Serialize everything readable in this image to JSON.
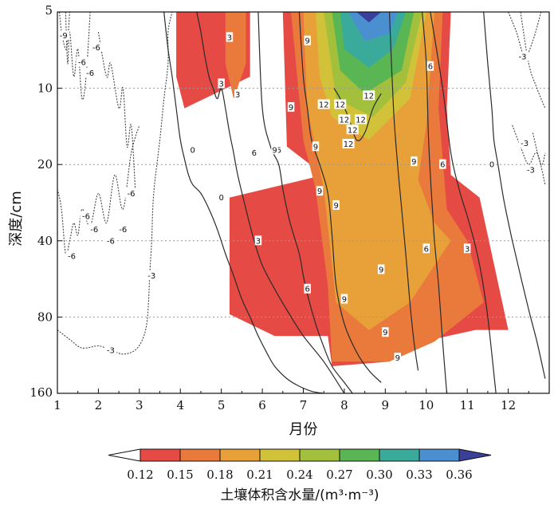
{
  "chart_data": {
    "type": "heatmap",
    "title": "",
    "xlabel": "月份",
    "ylabel": "深度/cm",
    "xlim": [
      1,
      13
    ],
    "ylim": [
      5,
      160
    ],
    "y_scale": "log",
    "x_ticks": [
      1,
      2,
      3,
      4,
      5,
      6,
      7,
      8,
      9,
      10,
      11,
      12
    ],
    "y_ticks": [
      5,
      10,
      20,
      40,
      80,
      160
    ],
    "grid": "dotted horizontal at 10, 20, 40, 80 cm",
    "colorbar": {
      "title": "土壤体积含水量/(m³·m⁻³)",
      "labels": [
        "0.12",
        "0.15",
        "0.18",
        "0.21",
        "0.24",
        "0.27",
        "0.30",
        "0.33",
        "0.36"
      ],
      "colors": [
        "#ffffff",
        "#e64a45",
        "#ea7a3c",
        "#e8a138",
        "#d2c23a",
        "#a2c03c",
        "#5ab553",
        "#3aab9a",
        "#4a8fcf",
        "#3a3f9a"
      ],
      "extend": "both",
      "placement": "bottom"
    },
    "fill_regions": [
      {
        "level": 0.12,
        "x": [
          3.9,
          5.7,
          5.7,
          4.1,
          3.9
        ],
        "y": [
          5,
          5,
          9,
          12,
          9
        ]
      },
      {
        "level": 0.12,
        "x": [
          6.5,
          10.6,
          10.5,
          10.6,
          11.3,
          12.0,
          11.2,
          9.9,
          9.1,
          7.7,
          7.6,
          6.5,
          6.3,
          5.2,
          5.2,
          7.5,
          6.6,
          6.5
        ],
        "y": [
          5,
          5,
          12,
          22,
          27,
          90,
          90,
          100,
          120,
          125,
          95,
          95,
          95,
          78,
          27,
          22,
          17,
          5
        ]
      },
      {
        "level": 0.15,
        "x": [
          5.1,
          5.6,
          5.6,
          5.3,
          5.1
        ],
        "y": [
          5,
          5,
          8,
          11,
          8
        ]
      },
      {
        "level": 0.15,
        "x": [
          6.7,
          10.4,
          10.3,
          10.5,
          11.0,
          11.4,
          10.2,
          9.1,
          7.7,
          7.6,
          7.3,
          7.0,
          6.7
        ],
        "y": [
          5,
          5,
          12,
          30,
          40,
          70,
          100,
          120,
          120,
          60,
          25,
          16,
          5
        ]
      },
      {
        "level": 0.18,
        "x": [
          7.0,
          10.2,
          10.0,
          9.8,
          10.2,
          10.6,
          9.6,
          8.6,
          7.8,
          7.5,
          7.1,
          7.0
        ],
        "y": [
          5,
          5,
          14,
          23,
          34,
          40,
          70,
          90,
          70,
          25,
          12,
          5
        ]
      },
      {
        "level": 0.21,
        "x": [
          7.3,
          10.0,
          9.6,
          8.6,
          7.7,
          7.4,
          7.3
        ],
        "y": [
          5,
          5,
          11,
          16,
          13,
          9,
          5
        ]
      },
      {
        "level": 0.24,
        "x": [
          7.5,
          9.9,
          9.5,
          8.7,
          7.8,
          7.5
        ],
        "y": [
          5,
          5,
          9.5,
          13,
          11,
          5
        ]
      },
      {
        "level": 0.27,
        "x": [
          7.7,
          9.7,
          9.4,
          8.5,
          7.9,
          7.7
        ],
        "y": [
          5,
          5,
          8.5,
          10.5,
          8.5,
          5
        ]
      },
      {
        "level": 0.3,
        "x": [
          7.9,
          9.5,
          9.2,
          8.6,
          8.0,
          7.9
        ],
        "y": [
          5,
          5,
          7,
          8.3,
          7,
          5
        ]
      },
      {
        "level": 0.33,
        "x": [
          8.1,
          9.3,
          9.1,
          8.5,
          8.1
        ],
        "y": [
          5,
          5,
          6.1,
          6.5,
          5
        ]
      },
      {
        "level": 0.36,
        "x": [
          8.3,
          8.9,
          8.6,
          8.3
        ],
        "y": [
          5,
          5,
          5.5,
          5
        ]
      }
    ],
    "contours": [
      {
        "label": "-9",
        "style": "dashed",
        "x": [
          1.05,
          1.1,
          1.2,
          1.25,
          1.3
        ],
        "y": [
          5,
          6,
          7,
          6.5,
          5
        ]
      },
      {
        "label": "-6",
        "style": "dashed",
        "x": [
          1.2,
          1.25,
          1.3,
          1.4,
          1.5,
          1.6,
          1.7,
          1.8
        ],
        "y": [
          5,
          8,
          6,
          9,
          7,
          11,
          9,
          5
        ]
      },
      {
        "label": "-6",
        "style": "dashed",
        "x": [
          1.0,
          1.1,
          1.2,
          1.3,
          1.4,
          1.5,
          1.6,
          1.8,
          2.0,
          2.2,
          2.4,
          2.6,
          2.8,
          3.0
        ],
        "y": [
          25,
          30,
          45,
          40,
          34,
          38,
          30,
          35,
          26,
          34,
          22,
          30,
          18,
          14
        ]
      },
      {
        "label": "-6",
        "style": "dashed",
        "x": [
          2.0,
          2.2,
          2.3,
          2.5,
          2.6,
          2.7,
          2.8,
          2.9
        ],
        "y": [
          6,
          9,
          8,
          12,
          10,
          17,
          14,
          25
        ]
      },
      {
        "label": "-6",
        "style": "dashed",
        "x": [
          12.3,
          12.5,
          12.7,
          12.9
        ],
        "y": [
          5,
          8,
          10,
          12
        ]
      },
      {
        "label": "-6",
        "style": "dashed",
        "x": [
          12.6,
          12.8,
          12.9
        ],
        "y": [
          15,
          20,
          18
        ]
      },
      {
        "label": "-3",
        "style": "dashed",
        "x": [
          12.0,
          12.2,
          12.4,
          12.6,
          12.8
        ],
        "y": [
          5,
          6,
          7.5,
          6.5,
          5
        ]
      },
      {
        "label": "-3",
        "style": "dashed",
        "x": [
          12.1,
          12.3,
          12.5,
          12.7,
          12.9
        ],
        "y": [
          14,
          17,
          20,
          18,
          24
        ]
      },
      {
        "label": "-3",
        "style": "dashed",
        "x": [
          1.0,
          1.3,
          1.6,
          2.0,
          2.3,
          2.6,
          2.9,
          3.1,
          3.2,
          3.25
        ],
        "y": [
          90,
          98,
          106,
          104,
          108,
          112,
          108,
          96,
          80,
          55
        ]
      },
      {
        "label": "-3",
        "style": "dashed",
        "x": [
          3.25,
          3.3,
          3.35,
          3.5,
          3.6,
          3.7,
          3.7,
          3.8
        ],
        "y": [
          55,
          40,
          26,
          16,
          11,
          8,
          6,
          5
        ]
      },
      {
        "label": "0",
        "style": "solid",
        "x": [
          3.6,
          3.7,
          3.8,
          3.9,
          4.0,
          4.1,
          4.2,
          4.3,
          4.5,
          4.7,
          4.9,
          5.1,
          5.3,
          5.5,
          5.7,
          5.9,
          6.1,
          6.3,
          6.6,
          6.9,
          7.2,
          7.5
        ],
        "y": [
          5,
          7,
          9,
          12,
          16,
          19,
          22,
          24,
          26,
          30,
          36,
          45,
          55,
          68,
          80,
          95,
          110,
          125,
          140,
          150,
          157,
          160
        ]
      },
      {
        "label": "0",
        "style": "solid",
        "x": [
          11.4,
          11.5,
          11.6,
          11.65,
          11.75,
          11.9,
          12.1,
          12.3,
          12.5,
          12.7,
          12.9
        ],
        "y": [
          5,
          8,
          12,
          16,
          20,
          28,
          40,
          55,
          75,
          100,
          140
        ]
      },
      {
        "label": "3",
        "style": "solid",
        "x": [
          4.4,
          4.5,
          4.6,
          4.7,
          4.8,
          4.9,
          5.0,
          5.1,
          5.2,
          5.3,
          5.4,
          5.6,
          5.8,
          6.0,
          6.3,
          6.6,
          7.0,
          7.5,
          8.0
        ],
        "y": [
          5,
          6,
          7.5,
          9,
          10,
          11,
          10,
          12,
          15,
          18,
          22,
          30,
          40,
          50,
          62,
          75,
          95,
          120,
          160
        ]
      },
      {
        "label": "3",
        "style": "solid",
        "x": [
          10.1,
          10.4,
          10.6,
          10.8,
          11.0,
          11.2,
          11.35,
          11.5,
          11.7
        ],
        "y": [
          5,
          10,
          18,
          25,
          32,
          42,
          55,
          80,
          160
        ]
      },
      {
        "label": "6",
        "style": "solid",
        "x": [
          5.9,
          6.0,
          6.2,
          6.4,
          6.5,
          6.6,
          6.7,
          6.9,
          7.0,
          7.1,
          7.3,
          7.5,
          7.7,
          8.0,
          8.2
        ],
        "y": [
          5,
          12,
          17,
          20,
          25,
          30,
          35,
          45,
          55,
          65,
          85,
          105,
          125,
          145,
          160
        ]
      },
      {
        "label": "6",
        "style": "solid",
        "x": [
          9.9,
          10.0,
          10.05,
          10.1,
          10.15,
          10.2,
          10.3,
          10.4,
          10.5
        ],
        "y": [
          5,
          8,
          15,
          22,
          30,
          40,
          60,
          100,
          160
        ]
      },
      {
        "label": "9",
        "style": "solid",
        "x": [
          6.9,
          7.0,
          7.1,
          7.2,
          7.4,
          7.6,
          7.7,
          7.8,
          8.0,
          8.3,
          8.6,
          8.9
        ],
        "y": [
          5,
          9,
          12,
          16,
          20,
          26,
          38,
          60,
          85,
          110,
          130,
          145
        ]
      },
      {
        "label": "9",
        "style": "solid",
        "x": [
          9.1,
          9.2,
          9.3,
          9.4,
          9.5,
          9.6,
          9.7,
          9.8
        ],
        "y": [
          5,
          12,
          20,
          30,
          45,
          70,
          100,
          130
        ]
      },
      {
        "label": "12",
        "style": "solid",
        "x": [
          7.75,
          7.9,
          8.1,
          8.3,
          8.5,
          8.7,
          8.9
        ],
        "y": [
          10,
          11,
          13,
          16,
          15,
          12,
          10.5
        ]
      }
    ],
    "contour_labels": [
      {
        "text": "-9",
        "x": 1.15,
        "y": 6.2
      },
      {
        "text": "-6",
        "x": 1.6,
        "y": 7.9
      },
      {
        "text": "-6",
        "x": 1.8,
        "y": 8.7
      },
      {
        "text": "-6",
        "x": 1.95,
        "y": 6.9
      },
      {
        "text": "-6",
        "x": 1.7,
        "y": 32
      },
      {
        "text": "-6",
        "x": 1.9,
        "y": 36
      },
      {
        "text": "-6",
        "x": 2.6,
        "y": 36
      },
      {
        "text": "-6",
        "x": 2.3,
        "y": 40
      },
      {
        "text": "-6",
        "x": 2.8,
        "y": 26
      },
      {
        "text": "-6",
        "x": 1.35,
        "y": 46
      },
      {
        "text": "-3",
        "x": 3.3,
        "y": 55
      },
      {
        "text": "-3",
        "x": 2.3,
        "y": 108
      },
      {
        "text": "-3",
        "x": 12.35,
        "y": 7.5
      },
      {
        "text": "-3",
        "x": 12.4,
        "y": 16.5
      },
      {
        "text": "-3",
        "x": 12.55,
        "y": 21
      },
      {
        "text": "0",
        "x": 4.3,
        "y": 17.5
      },
      {
        "text": "0",
        "x": 5.0,
        "y": 27
      },
      {
        "text": "0",
        "x": 11.6,
        "y": 20
      },
      {
        "text": "3",
        "x": 5.2,
        "y": 6.3
      },
      {
        "text": "3",
        "x": 5.0,
        "y": 9.6
      },
      {
        "text": "3",
        "x": 5.4,
        "y": 10.6
      },
      {
        "text": "3",
        "x": 5.9,
        "y": 40
      },
      {
        "text": "3",
        "x": 11.0,
        "y": 43
      },
      {
        "text": "6",
        "x": 5.8,
        "y": 18
      },
      {
        "text": "6",
        "x": 6.4,
        "y": 17.5
      },
      {
        "text": "6",
        "x": 7.1,
        "y": 62
      },
      {
        "text": "6",
        "x": 10.1,
        "y": 8.2
      },
      {
        "text": "6",
        "x": 10.0,
        "y": 43
      },
      {
        "text": "6",
        "x": 10.4,
        "y": 20
      },
      {
        "text": "9",
        "x": 7.1,
        "y": 6.5
      },
      {
        "text": "9",
        "x": 6.7,
        "y": 11.9
      },
      {
        "text": "9",
        "x": 6.3,
        "y": 17.5
      },
      {
        "text": "9",
        "x": 7.3,
        "y": 17
      },
      {
        "text": "9",
        "x": 7.4,
        "y": 25.5
      },
      {
        "text": "9",
        "x": 7.8,
        "y": 29
      },
      {
        "text": "9",
        "x": 8.0,
        "y": 68
      },
      {
        "text": "9",
        "x": 8.9,
        "y": 52
      },
      {
        "text": "9",
        "x": 9.0,
        "y": 92
      },
      {
        "text": "9",
        "x": 9.3,
        "y": 116
      },
      {
        "text": "9",
        "x": 9.7,
        "y": 19.5
      },
      {
        "text": "12",
        "x": 7.5,
        "y": 11.6
      },
      {
        "text": "12",
        "x": 7.9,
        "y": 11.6
      },
      {
        "text": "12",
        "x": 8.6,
        "y": 10.7
      },
      {
        "text": "12",
        "x": 8.0,
        "y": 13.3
      },
      {
        "text": "12",
        "x": 8.4,
        "y": 13.3
      },
      {
        "text": "12",
        "x": 8.2,
        "y": 14.6
      },
      {
        "text": "12",
        "x": 8.1,
        "y": 16.6
      }
    ]
  }
}
